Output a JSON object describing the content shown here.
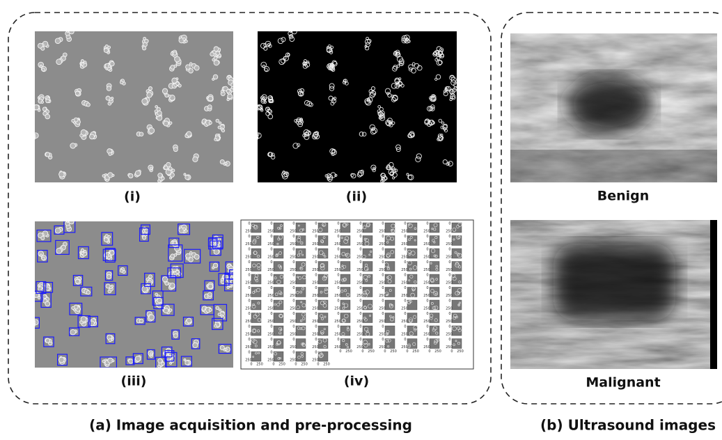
{
  "panels": [
    {
      "label": "(i)"
    },
    {
      "label": "(ii)"
    },
    {
      "label": "(iii)"
    },
    {
      "label": "(iv)"
    }
  ],
  "panel_iv_ticks": [
    "0",
    "250"
  ],
  "ultrasound": [
    {
      "label": "Benign"
    },
    {
      "label": "Malignant"
    }
  ],
  "captions": {
    "a": "(a) Image acquisition and pre-processing",
    "b": "(b) Ultrasound images"
  }
}
